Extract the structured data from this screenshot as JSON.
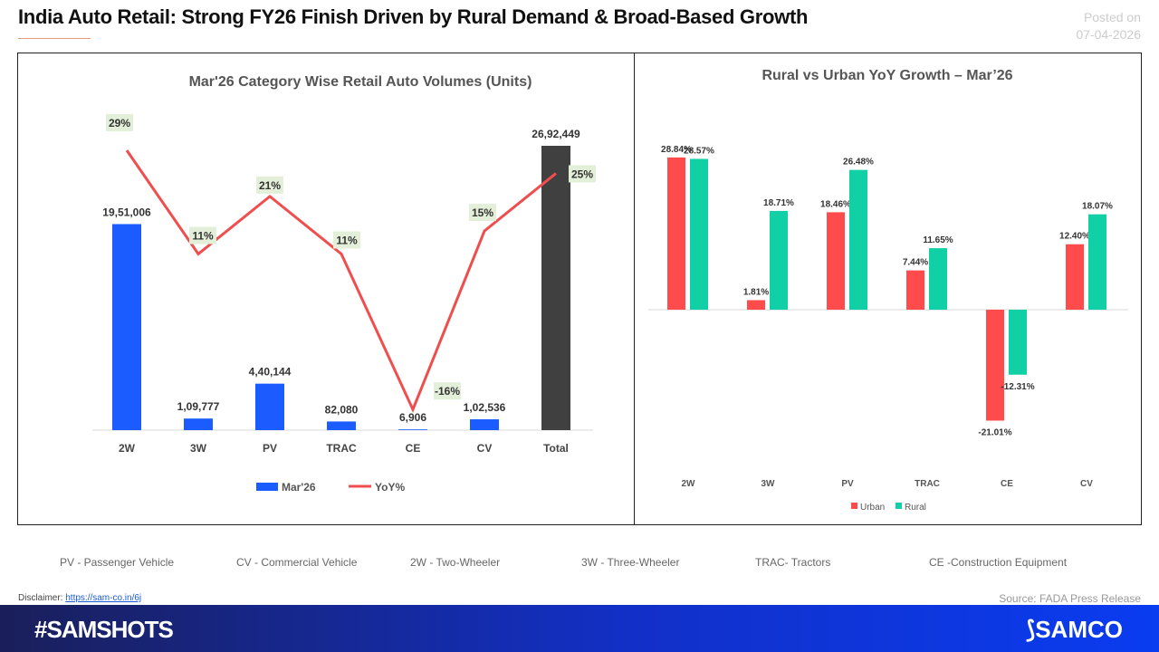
{
  "header": {
    "title": "India Auto Retail: Strong FY26 Finish Driven by Rural Demand & Broad-Based Growth",
    "posted_label": "Posted on",
    "posted_date": "07-04-2026"
  },
  "chart_data": [
    {
      "type": "bar+line",
      "title": "Mar'26 Category Wise Retail Auto Volumes (Units)",
      "categories": [
        "2W",
        "3W",
        "PV",
        "TRAC",
        "CE",
        "CV",
        "Total"
      ],
      "series": [
        {
          "name": "Mar'26",
          "type": "bar",
          "values": [
            1951006,
            109777,
            440144,
            82080,
            6906,
            102536,
            2692449
          ],
          "labels": [
            "19,51,006",
            "1,09,777",
            "4,40,144",
            "82,080",
            "6,906",
            "1,02,536",
            "26,92,449"
          ],
          "color": "#1a5cff",
          "total_color": "#404040"
        },
        {
          "name": "YoY%",
          "type": "line",
          "values": [
            29,
            11,
            21,
            11,
            -16,
            15,
            25
          ],
          "labels": [
            "29%",
            "11%",
            "21%",
            "11%",
            "-16%",
            "15%",
            "25%"
          ],
          "color": "#f04e4e"
        }
      ],
      "legend": "bottom"
    },
    {
      "type": "bar",
      "title": "Rural vs Urban YoY Growth – Mar’26",
      "categories": [
        "2W",
        "3W",
        "PV",
        "TRAC",
        "CE",
        "CV"
      ],
      "series": [
        {
          "name": "Urban",
          "values": [
            28.84,
            1.81,
            18.46,
            7.44,
            -21.01,
            12.4
          ],
          "labels": [
            "28.84%",
            "1.81%",
            "18.46%",
            "7.44%",
            "-21.01%",
            "12.40%"
          ],
          "color": "#ff4b4b"
        },
        {
          "name": "Rural",
          "values": [
            28.57,
            18.71,
            26.48,
            11.65,
            -12.31,
            18.07
          ],
          "labels": [
            "28.57%",
            "18.71%",
            "26.48%",
            "11.65%",
            "-12.31%",
            "18.07%"
          ],
          "color": "#12d0a6"
        }
      ],
      "legend": "bottom"
    }
  ],
  "abbreviations": [
    "PV - Passenger Vehicle",
    "CV - Commercial Vehicle",
    "2W - Two-Wheeler",
    "3W - Three-Wheeler",
    "TRAC- Tractors",
    "CE -Construction Equipment"
  ],
  "footer": {
    "disclaimer_label": "Disclaimer:",
    "disclaimer_link": "https://sam-co.in/6j",
    "source": "Source: FADA Press Release",
    "hashtag": "#SAMSHOTS",
    "brand": "SAMCO"
  }
}
